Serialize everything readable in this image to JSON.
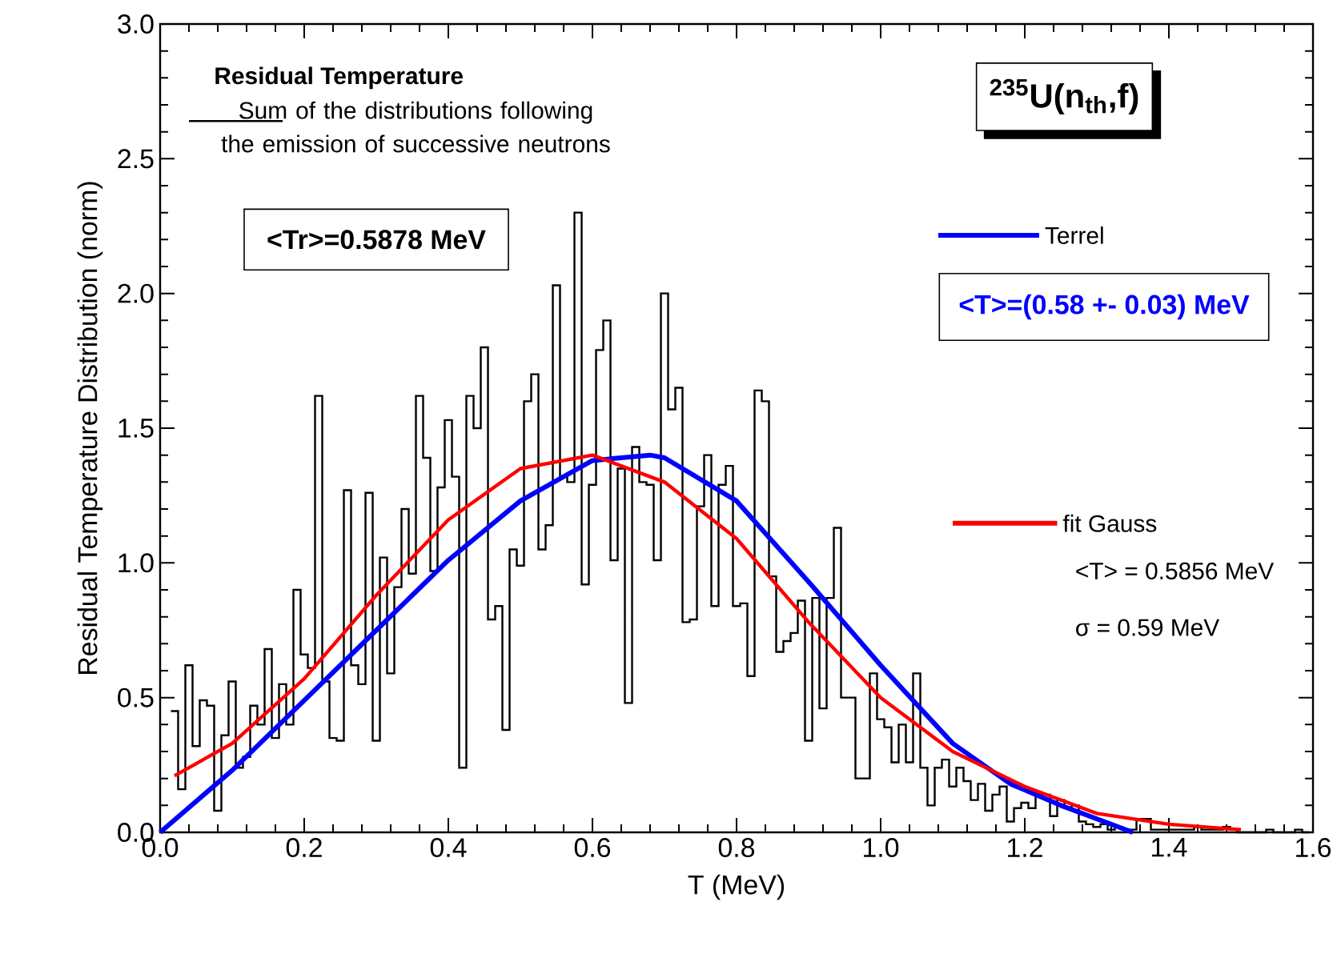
{
  "chart_data": {
    "type": "histogram",
    "xlabel": "T (MeV)",
    "ylabel": "Residual Temperature Distribution (norm)",
    "legend_title": "Residual Temperature",
    "legend": "right",
    "xlim": [
      0,
      1.6
    ],
    "ylim": [
      0,
      3.0
    ],
    "xticks": [
      {
        "value": 0,
        "label": "0.0"
      },
      {
        "value": 0.2,
        "label": "0.2"
      },
      {
        "value": 0.4,
        "label": "0.4"
      },
      {
        "value": 0.6,
        "label": "0.6"
      },
      {
        "value": 0.8,
        "label": "0.8"
      },
      {
        "value": 1.0,
        "label": "1.0"
      },
      {
        "value": 1.2,
        "label": "1.2"
      },
      {
        "value": 1.4,
        "label": "1.4"
      },
      {
        "value": 1.6,
        "label": "1.6"
      }
    ],
    "yticks": [
      {
        "value": 0,
        "label": "0.0"
      },
      {
        "value": 0.5,
        "label": "0.5"
      },
      {
        "value": 1.0,
        "label": "1.0"
      },
      {
        "value": 1.5,
        "label": "1.5"
      },
      {
        "value": 2.0,
        "label": "2.0"
      },
      {
        "value": 2.5,
        "label": "2.5"
      },
      {
        "value": 3.0,
        "label": "3.0"
      }
    ],
    "annotations": [
      "$^{235}$U(n$_{th}$,f)",
      "<Tr>=0.5878 MeV",
      "<T>=(0.58 +- 0.03) MeV",
      "<T> = 0.5856 MeV",
      "σ = 0.59 MeV"
    ],
    "bins": [
      0.015,
      0.025,
      0.035,
      0.045,
      0.055,
      0.065,
      0.075,
      0.085,
      0.095,
      0.105,
      0.115,
      0.125,
      0.135,
      0.145,
      0.155,
      0.165,
      0.175,
      0.185,
      0.195,
      0.205,
      0.215,
      0.225,
      0.235,
      0.245,
      0.255,
      0.265,
      0.275,
      0.285,
      0.295,
      0.305,
      0.315,
      0.325,
      0.335,
      0.345,
      0.355,
      0.365,
      0.375,
      0.385,
      0.395,
      0.405,
      0.415,
      0.425,
      0.435,
      0.445,
      0.455,
      0.465,
      0.475,
      0.485,
      0.495,
      0.505,
      0.515,
      0.525,
      0.535,
      0.545,
      0.555,
      0.565,
      0.575,
      0.585,
      0.595,
      0.605,
      0.615,
      0.625,
      0.635,
      0.645,
      0.655,
      0.665,
      0.675,
      0.685,
      0.695,
      0.705,
      0.715,
      0.725,
      0.735,
      0.745,
      0.755,
      0.765,
      0.775,
      0.785,
      0.795,
      0.805,
      0.815,
      0.825,
      0.835,
      0.845,
      0.855,
      0.865,
      0.875,
      0.885,
      0.895,
      0.905,
      0.915,
      0.925,
      0.935,
      0.945,
      0.955,
      0.965,
      0.975,
      0.985,
      0.995,
      1.005,
      1.015,
      1.025,
      1.035,
      1.045,
      1.055,
      1.065,
      1.075,
      1.085,
      1.095,
      1.105,
      1.115,
      1.125,
      1.135,
      1.145,
      1.155,
      1.165,
      1.175,
      1.185,
      1.195,
      1.205,
      1.215,
      1.225,
      1.235,
      1.245,
      1.255,
      1.265,
      1.275,
      1.285,
      1.295,
      1.305,
      1.315,
      1.325,
      1.335,
      1.345,
      1.355,
      1.365,
      1.375,
      1.385,
      1.395,
      1.405,
      1.415,
      1.425,
      1.435,
      1.445,
      1.455,
      1.465,
      1.475,
      1.485,
      1.495,
      1.505,
      1.515,
      1.525,
      1.535,
      1.545,
      1.555,
      1.565,
      1.575,
      1.585,
      1.595
    ],
    "series": [
      {
        "name": "Sum of the distributions following the emission of successive neutrons",
        "color": "#000000",
        "values": [
          0.45,
          0.16,
          0.62,
          0.32,
          0.49,
          0.47,
          0.08,
          0.36,
          0.56,
          0.24,
          0.28,
          0.47,
          0.4,
          0.68,
          0.35,
          0.55,
          0.4,
          0.9,
          0.66,
          0.61,
          1.62,
          0.56,
          0.35,
          0.34,
          1.27,
          0.62,
          0.55,
          1.26,
          0.34,
          1.02,
          0.59,
          0.91,
          1.2,
          0.96,
          1.62,
          1.39,
          0.97,
          1.28,
          1.53,
          1.32,
          0.24,
          1.62,
          1.5,
          1.8,
          0.79,
          0.84,
          0.38,
          1.05,
          0.99,
          1.6,
          1.7,
          1.05,
          1.14,
          2.03,
          1.32,
          1.3,
          2.3,
          0.92,
          1.29,
          1.79,
          1.9,
          1.01,
          1.35,
          0.48,
          1.43,
          1.3,
          1.29,
          1.01,
          2.0,
          1.57,
          1.65,
          0.78,
          0.79,
          1.21,
          1.4,
          0.84,
          1.29,
          1.36,
          0.84,
          0.85,
          0.58,
          1.64,
          1.6,
          0.95,
          0.67,
          0.71,
          0.74,
          0.86,
          0.34,
          0.87,
          0.46,
          0.87,
          1.13,
          0.5,
          0.5,
          0.2,
          0.2,
          0.59,
          0.42,
          0.39,
          0.26,
          0.4,
          0.26,
          0.59,
          0.24,
          0.1,
          0.24,
          0.27,
          0.17,
          0.24,
          0.19,
          0.12,
          0.18,
          0.08,
          0.14,
          0.17,
          0.04,
          0.09,
          0.11,
          0.09,
          0.14,
          0.14,
          0.06,
          0.12,
          0.09,
          0.1,
          0.04,
          0.03,
          0.02,
          0.03,
          0.01,
          0.02,
          0.01,
          0.01,
          0.05,
          0.05,
          0.01,
          0.01,
          0.01,
          0.01,
          0.01,
          0.01,
          0.02,
          0.01,
          0.01,
          0.01,
          0.02,
          0.01,
          0,
          0,
          0,
          0,
          0.01,
          0,
          0,
          0,
          0.01,
          0
        ]
      },
      {
        "type": "line",
        "name": "Terrel",
        "color": "#0000ff",
        "x": [
          0,
          0.1,
          0.2,
          0.3,
          0.4,
          0.5,
          0.6,
          0.68,
          0.7,
          0.8,
          0.9,
          1.0,
          1.1,
          1.18,
          1.25,
          1.35
        ],
        "values": [
          0,
          0.23,
          0.49,
          0.75,
          1.01,
          1.23,
          1.38,
          1.4,
          1.39,
          1.23,
          0.93,
          0.62,
          0.33,
          0.18,
          0.1,
          0
        ]
      },
      {
        "type": "line",
        "name": "fit Gauss",
        "color": "#ff0000",
        "x": [
          0.02,
          0.1,
          0.2,
          0.3,
          0.4,
          0.5,
          0.6,
          0.7,
          0.8,
          0.9,
          1.0,
          1.1,
          1.2,
          1.3,
          1.4,
          1.5
        ],
        "values": [
          0.21,
          0.33,
          0.57,
          0.88,
          1.16,
          1.35,
          1.4,
          1.3,
          1.09,
          0.78,
          0.5,
          0.3,
          0.17,
          0.07,
          0.03,
          0.01
        ]
      }
    ]
  }
}
